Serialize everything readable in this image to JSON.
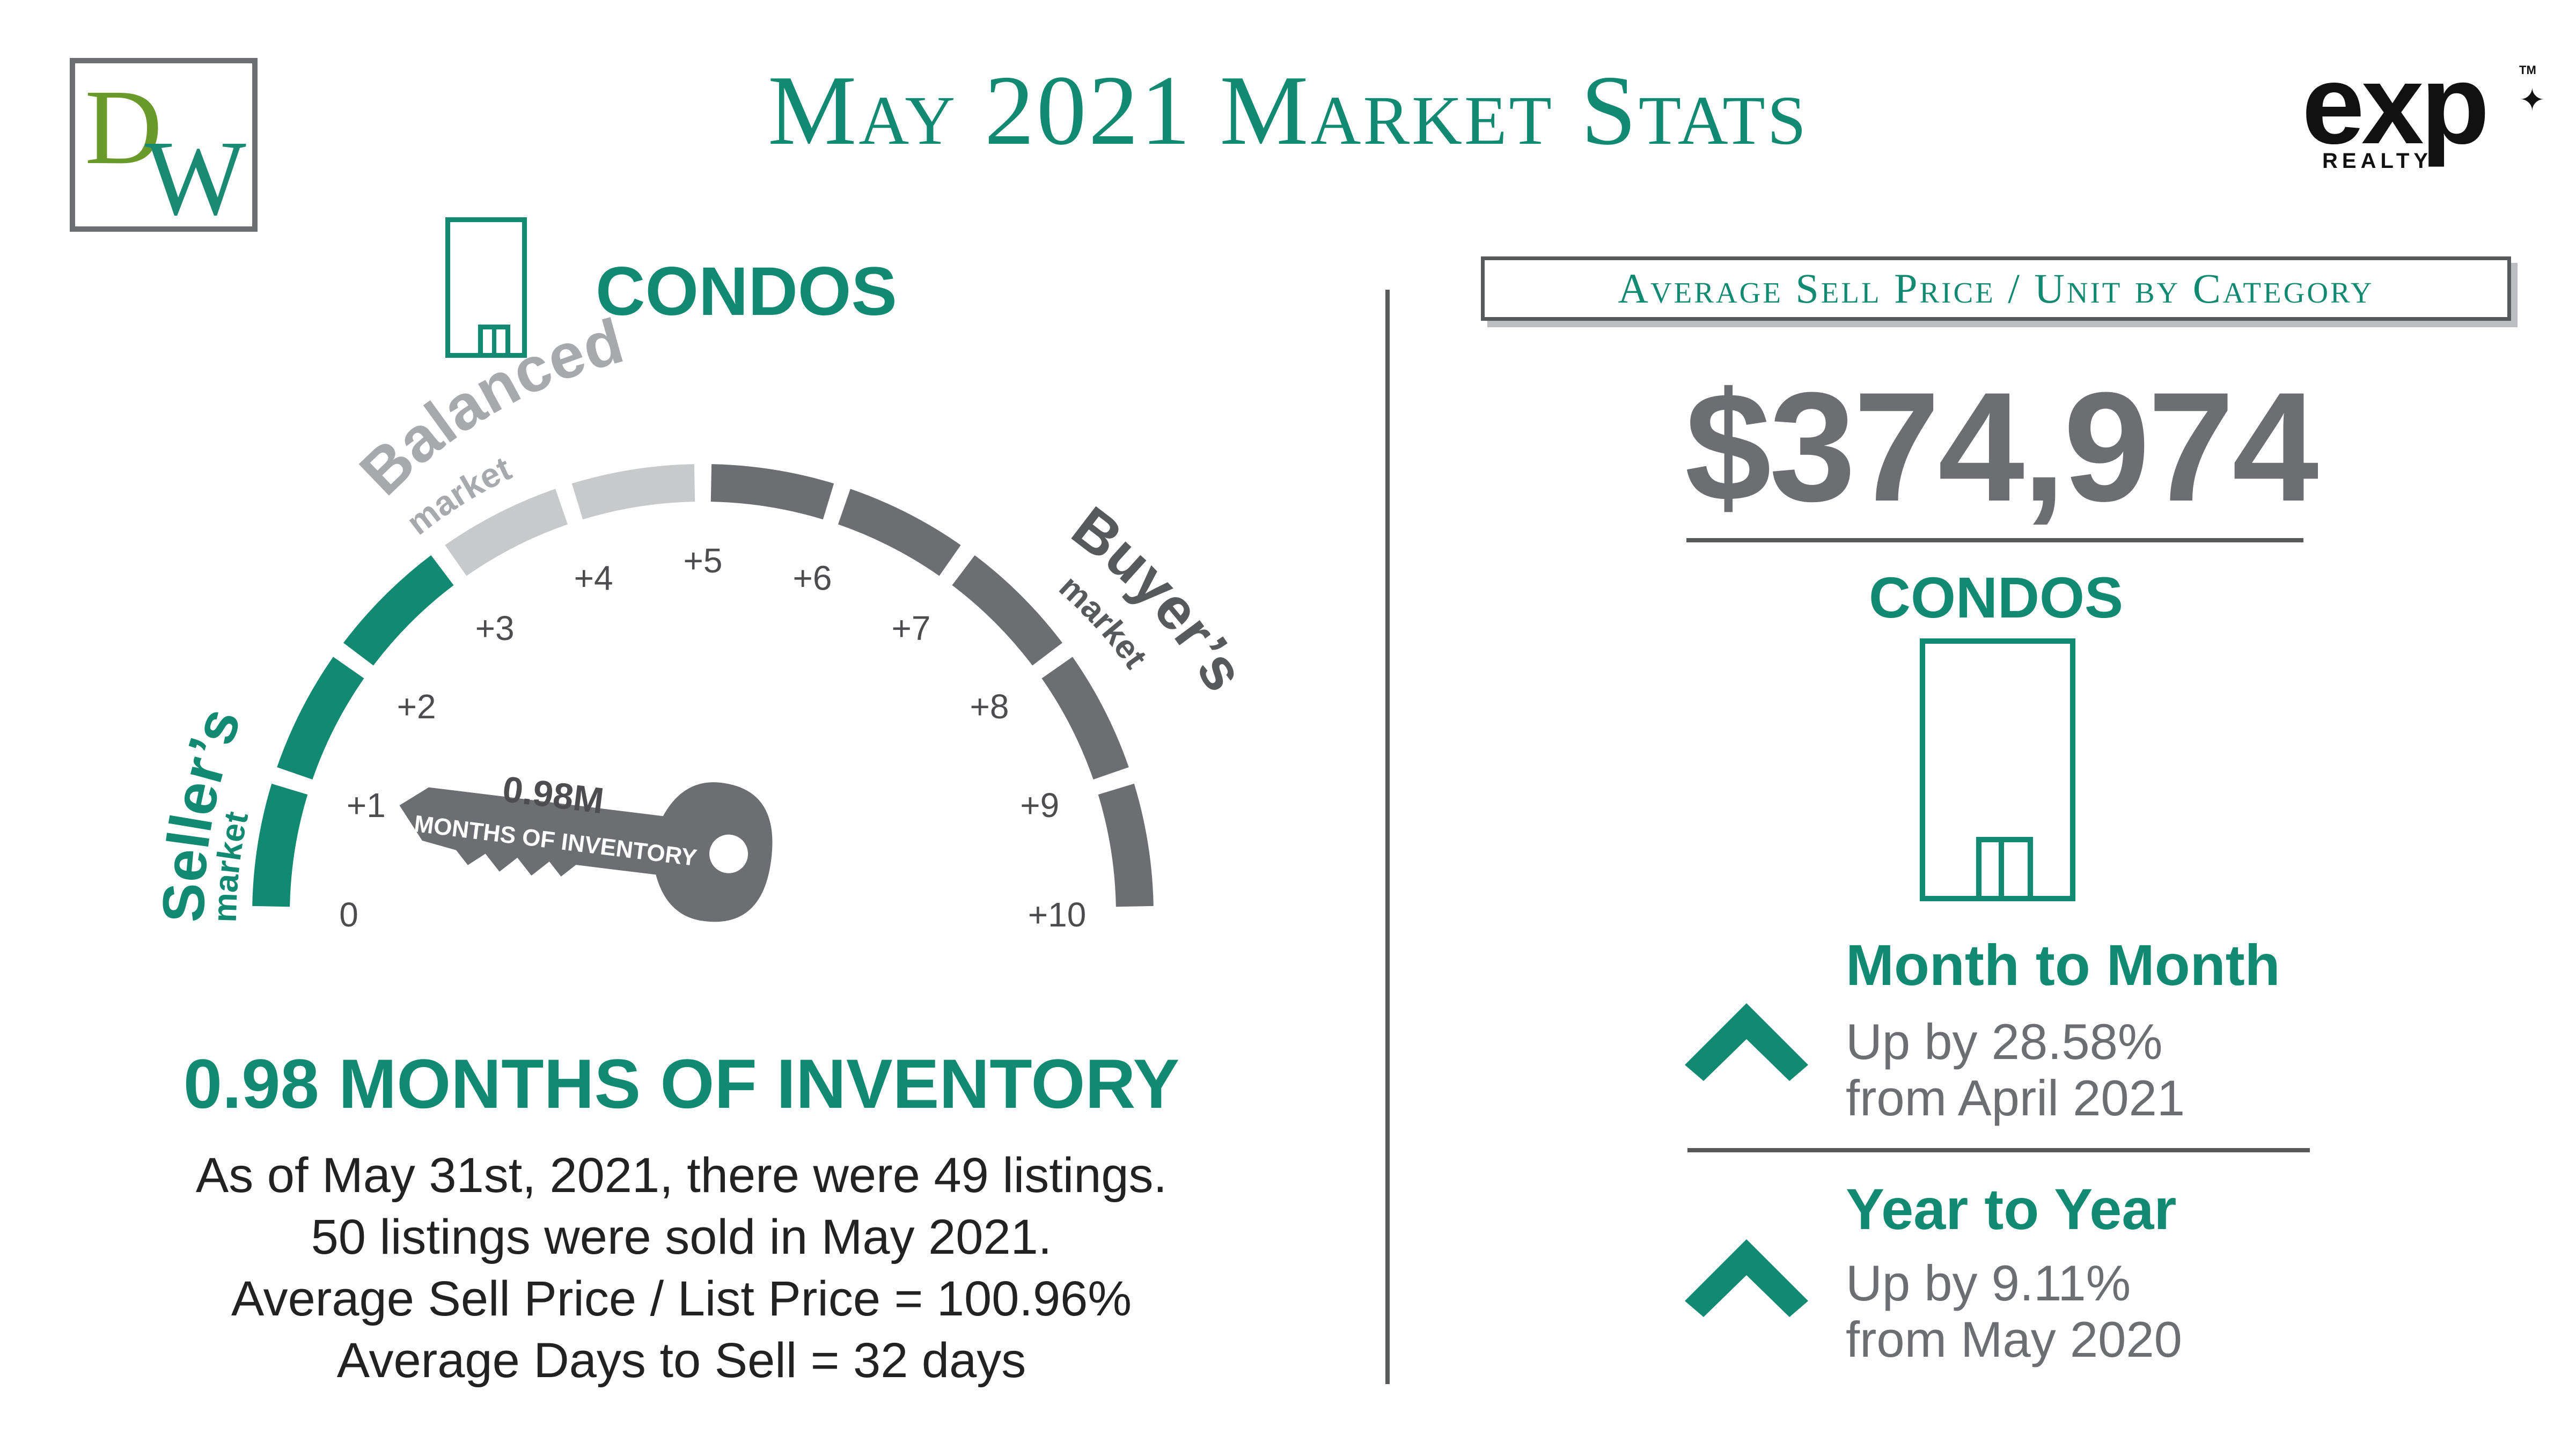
{
  "header": {
    "logo_left": "DW",
    "title": "May 2021 Market Stats",
    "logo_right": {
      "word": "exp",
      "sub": "REALTY",
      "tm": "TM"
    }
  },
  "gauge": {
    "category": "CONDOS",
    "labels": {
      "sellers": "Seller’s",
      "sellers_sub": "market",
      "balanced": "Balanced",
      "balanced_sub": "market",
      "buyers": "Buyer’s",
      "buyers_sub": "market"
    },
    "ticks": [
      "0",
      "+1",
      "+2",
      "+3",
      "+4",
      "+5",
      "+6",
      "+7",
      "+8",
      "+9",
      "+10"
    ],
    "segment_colors": [
      "#128a72",
      "#128a72",
      "#128a72",
      "#c8c9cb",
      "#c8c9cb",
      "#6d6e71",
      "#6d6e71",
      "#6d6e71",
      "#6d6e71",
      "#6d6e71"
    ],
    "key_value": "0.98M",
    "key_text": "MONTHS OF INVENTORY",
    "value": 0.98
  },
  "inventory": {
    "heading": "0.98 MONTHS OF INVENTORY",
    "lines": [
      "As of May 31st, 2021, there were 49 listings.",
      "50 listings were sold in May 2021.",
      "Average Sell Price / List Price = 100.96%",
      "Average Days to Sell = 32 days"
    ]
  },
  "price_panel": {
    "box_title": "Average Sell Price / Unit by Category",
    "price": "$374,974",
    "category": "CONDOS",
    "month_to_month": {
      "heading": "Month to Month",
      "line1": "Up by 28.58%",
      "line2": "from April 2021"
    },
    "year_to_year": {
      "heading": "Year to Year",
      "line1": "Up by 9.11%",
      "line2": "from May 2020"
    }
  },
  "colors": {
    "accent": "#128a72",
    "gray": "#6d6e71",
    "light_gray": "#c8c9cb"
  }
}
